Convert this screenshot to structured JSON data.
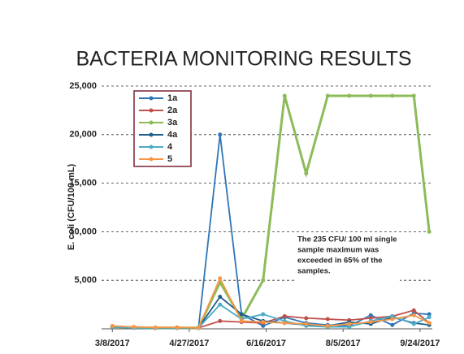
{
  "chart_data": {
    "type": "line",
    "title": "BACTERIA MONITORING RESULTS",
    "y_label": "E. coli (CFU/100 mL)",
    "annotation": [
      "The 235 CFU/ 100 ml single",
      "sample maximum was",
      "exceeded in 65% of the",
      "samples."
    ],
    "x": [
      67,
      81,
      95,
      109,
      123,
      137,
      151,
      165,
      179,
      193,
      207,
      221,
      235,
      249,
      263,
      273
    ],
    "xlim": [
      60,
      275
    ],
    "xticks": [
      {
        "value": 67,
        "label": "3/8/2017"
      },
      {
        "value": 117,
        "label": "4/27/2017"
      },
      {
        "value": 167,
        "label": "6/16/2017"
      },
      {
        "value": 217,
        "label": "8/5/2017"
      },
      {
        "value": 267,
        "label": "9/24/2017"
      }
    ],
    "ylim": [
      0,
      25000
    ],
    "yticks": [
      {
        "value": 5000,
        "label": "5,000"
      },
      {
        "value": 10000,
        "label": "10,000"
      },
      {
        "value": 15000,
        "label": "15,000"
      },
      {
        "value": 20000,
        "label": "20,000"
      },
      {
        "value": 25000,
        "label": "25,000"
      }
    ],
    "grid": true,
    "legend": "upper left",
    "series": [
      {
        "name": "1a",
        "color": "#2e75b6",
        "values": [
          200,
          150,
          100,
          100,
          100,
          20000,
          1500,
          300,
          1200,
          600,
          400,
          300,
          1400,
          400,
          1600,
          1500
        ]
      },
      {
        "name": "2a",
        "color": "#c0504d",
        "values": [
          200,
          150,
          100,
          150,
          100,
          800,
          700,
          600,
          1300,
          1100,
          1000,
          900,
          1100,
          1300,
          1900,
          600
        ]
      },
      {
        "name": "3a",
        "color": "#8dbb5a",
        "values": [
          200,
          150,
          100,
          100,
          100,
          4800,
          1000,
          5000,
          24000,
          16000,
          24000,
          24000,
          24000,
          24000,
          24000,
          10000
        ]
      },
      {
        "name": "4a",
        "color": "#1f5f8b",
        "values": [
          200,
          150,
          100,
          100,
          100,
          3300,
          1500,
          800,
          600,
          400,
          300,
          700,
          500,
          1200,
          600,
          400
        ]
      },
      {
        "name": "4",
        "color": "#4bacc6",
        "values": [
          200,
          100,
          100,
          100,
          100,
          2500,
          1000,
          1500,
          800,
          300,
          200,
          200,
          800,
          1300,
          500,
          1200
        ]
      },
      {
        "name": "5",
        "color": "#f79646",
        "values": [
          300,
          200,
          150,
          150,
          100,
          5200,
          800,
          700,
          600,
          500,
          300,
          500,
          700,
          1000,
          1400,
          600
        ]
      }
    ]
  }
}
